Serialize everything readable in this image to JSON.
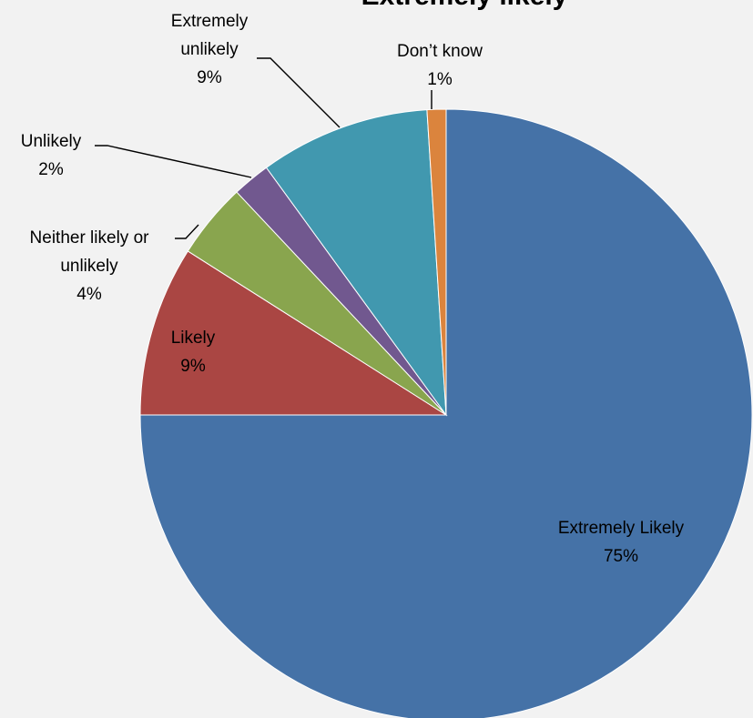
{
  "chart_data": {
    "type": "pie",
    "title": "Extremely likely",
    "start_angle_deg": 0,
    "direction": "clockwise",
    "slices": [
      {
        "name": "Extremely Likely",
        "value": 75,
        "label": "75%",
        "color": "#4572a7"
      },
      {
        "name": "Likely",
        "value": 9,
        "label": "9%",
        "color": "#aa4643"
      },
      {
        "name": "Neither likely or unlikely",
        "value": 4,
        "label": "4%",
        "color": "#89a54e"
      },
      {
        "name": "Unlikely",
        "value": 2,
        "label": "2%",
        "color": "#71588f"
      },
      {
        "name": "Extremely unlikely",
        "value": 9,
        "label": "9%",
        "color": "#4198af"
      },
      {
        "name": "Don’t know",
        "value": 1,
        "label": "1%",
        "color": "#db843d"
      }
    ],
    "legend": "none"
  }
}
